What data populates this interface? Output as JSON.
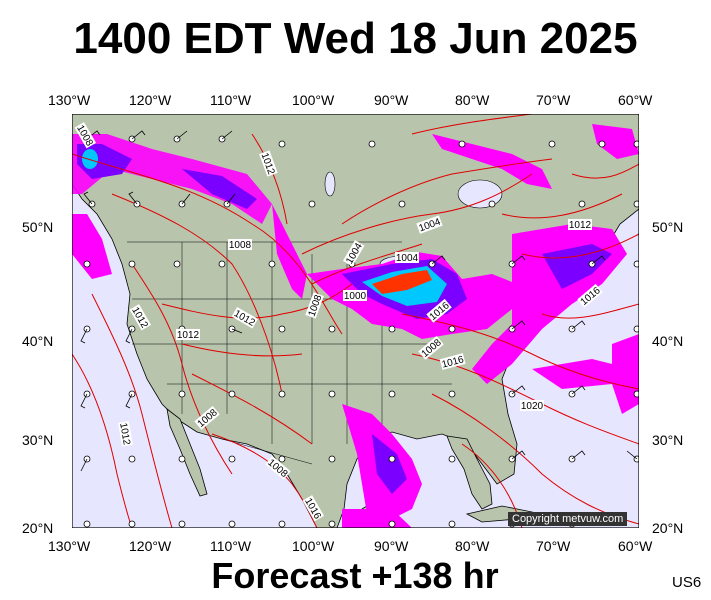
{
  "title": "1400 EDT Wed 18 Jun 2025",
  "footer": "Forecast +138 hr",
  "region_code": "US6",
  "copyright": "Copyright metvuw.com",
  "longitude_labels": [
    "130°W",
    "120°W",
    "110°W",
    "100°W",
    "90°W",
    "80°W",
    "70°W",
    "60°W"
  ],
  "latitude_labels": [
    "50°N",
    "40°N",
    "30°N",
    "20°N"
  ],
  "isobar_labels": [
    "1008",
    "1012",
    "1008",
    "1004",
    "1004",
    "1004",
    "1008",
    "1000",
    "1012",
    "1012",
    "1012",
    "1008",
    "1016",
    "1012",
    "1016",
    "1020",
    "1016",
    "1008",
    "1008",
    "1012",
    "1016"
  ],
  "colors": {
    "ocean": "#e6e6ff",
    "land": "#b9c4ad",
    "isobar": "#e00000",
    "rain_low": "#ff00ff",
    "rain_mid": "#7b00ff",
    "rain_high": "#00c8ff",
    "rain_extreme": "#ff3300"
  }
}
